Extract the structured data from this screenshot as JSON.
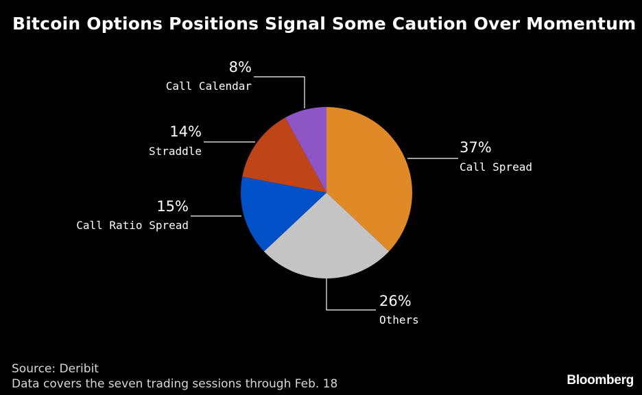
{
  "title": "Bitcoin Options Positions Signal Some Caution Over Momentum",
  "footer": {
    "source": "Source: Deribit",
    "note": "Data covers the seven trading sessions through Feb. 18",
    "brand": "Bloomberg"
  },
  "chart_data": {
    "type": "pie",
    "title": "Bitcoin Options Positions Signal Some Caution Over Momentum",
    "slices": [
      {
        "label": "Call Spread",
        "value": 37,
        "display": "37%",
        "color": "#e08a27"
      },
      {
        "label": "Others",
        "value": 26,
        "display": "26%",
        "color": "#c4c4c4"
      },
      {
        "label": "Call Ratio Spread",
        "value": 15,
        "display": "15%",
        "color": "#0050c8"
      },
      {
        "label": "Straddle",
        "value": 14,
        "display": "14%",
        "color": "#bf4418"
      },
      {
        "label": "Call Calendar",
        "value": 8,
        "display": "8%",
        "color": "#8e55c4"
      }
    ],
    "start_angle": "12 o'clock",
    "direction": "clockwise",
    "legend": "none (direct labels)"
  }
}
